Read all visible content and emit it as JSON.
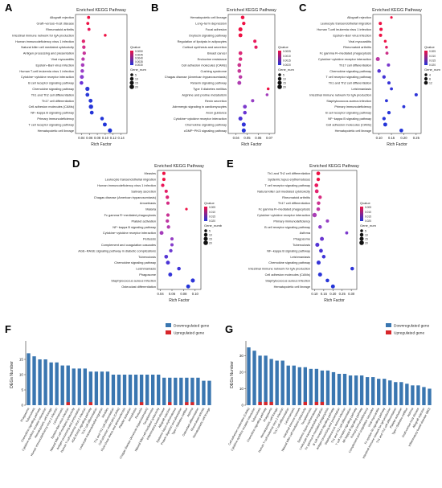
{
  "chart_data": [
    {
      "panel": "A",
      "type": "scatter",
      "title": "Enriched KEGG Pathway",
      "xlabel": "Rich Factor",
      "xticks": [
        "0.04",
        "0.06",
        "0.08",
        "0.10",
        "0.12",
        "0.14"
      ],
      "xlim": [
        0.025,
        0.155
      ],
      "legend": {
        "qvalue_title": "Qvalue",
        "qvalue_ticks": [
          "0.0050",
          "0.0045",
          "0.0040",
          "0.0035",
          "0.0030"
        ],
        "size_title": "Gene_number",
        "size_ticks": [
          "5",
          "10",
          "15",
          "20"
        ]
      },
      "categories": [
        "Allograft rejection",
        "Graft−versus−host disease",
        "Rheumatoid arthritis",
        "Intestinal immune network for IgA production",
        "Human immunodeficiency virus 1 infection",
        "Natural killer cell mediated cytotoxicity",
        "Antigen processing and presentation",
        "Viral myocarditis",
        "Epstein−Barr virus infection",
        "Human T-cell leukemia virus 1 infection",
        "Cytokine−cytokine receptor interaction",
        "B cell receptor signaling pathway",
        "Chemokine signaling pathway",
        "Th1 and Th2 cell differentiation",
        "Th17 cell differentiation",
        "Cell adhesion molecules (CAMs)",
        "NF−kappa B signaling pathway",
        "Primary immunodeficiency",
        "T cell receptor signaling pathway",
        "Hematopoietic cell lineage"
      ],
      "rich_factor": [
        0.058,
        0.056,
        0.059,
        0.1,
        0.045,
        0.046,
        0.047,
        0.044,
        0.043,
        0.042,
        0.041,
        0.04,
        0.055,
        0.055,
        0.063,
        0.064,
        0.066,
        0.092,
        0.099,
        0.112
      ],
      "gene_number": [
        4,
        4,
        4,
        3,
        6,
        6,
        6,
        6,
        7,
        7,
        9,
        7,
        11,
        8,
        9,
        12,
        8,
        7,
        9,
        11
      ],
      "color": [
        "#ee1144",
        "#ee1144",
        "#e8185a",
        "#ee1144",
        "#e0286e",
        "#d4308a",
        "#c8369a",
        "#bb3aab",
        "#a83cbd",
        "#9a3ec8",
        "#8a3ecf",
        "#6a30d8",
        "#3038d8",
        "#2a3ad8",
        "#2838d8",
        "#2636d8",
        "#2434d8",
        "#2234d8",
        "#2034d8",
        "#1e34d8"
      ]
    },
    {
      "panel": "B",
      "type": "scatter",
      "title": "Enriched KEGG Pathway",
      "xlabel": "Rich Factor",
      "xticks": [
        "0.04",
        "0.05",
        "0.06",
        "0.07"
      ],
      "xlim": [
        0.033,
        0.075
      ],
      "legend": {
        "qvalue_title": "Qvalue",
        "qvalue_ticks": [
          "0.0005",
          "0.0010",
          "0.0015",
          "0.0020"
        ],
        "size_title": "Gene_number",
        "size_ticks": [
          "5",
          "10",
          "15",
          "20"
        ]
      },
      "categories": [
        "Hematopoietic cell lineage",
        "Long−term depression",
        "Focal adhesion",
        "Oxytocin signaling pathway",
        "Regulation of lipolysis in adipocytes",
        "Cortisol synthesis and secretion",
        "Breast cancer",
        "Endocrine resistance",
        "Cell adhesion molecules (CAMs)",
        "Cushing syndrome",
        "Chagas disease (American trypanosomiasis)",
        "Relaxin signaling pathway",
        "Type II diabetes mellitus",
        "Arginine and proline metabolism",
        "Renin secretion",
        "Adrenergic signaling in cardiomyocytes",
        "Axon guidance",
        "Cytokine−cytokine receptor interaction",
        "Chemokine signaling pathway",
        "cGMP−PKG signaling pathway"
      ],
      "rich_factor": [
        0.046,
        0.047,
        0.044,
        0.044,
        0.057,
        0.058,
        0.044,
        0.044,
        0.043,
        0.043,
        0.044,
        0.043,
        0.069,
        0.068,
        0.055,
        0.048,
        0.048,
        0.044,
        0.047,
        0.047
      ],
      "gene_number": [
        7,
        6,
        10,
        9,
        5,
        5,
        8,
        7,
        8,
        8,
        7,
        9,
        3,
        3,
        5,
        8,
        7,
        10,
        10,
        10
      ],
      "color": [
        "#ee1144",
        "#ee1144",
        "#ee1144",
        "#ee1144",
        "#e8185a",
        "#e61c62",
        "#dc2a78",
        "#d8307e",
        "#cc3690",
        "#c63a98",
        "#bc3ca8",
        "#b03eb2",
        "#ee1144",
        "#a43ebc",
        "#963ec4",
        "#7c3acc",
        "#6a34d2",
        "#4c34d6",
        "#3234d8",
        "#2634d8"
      ]
    },
    {
      "panel": "C",
      "type": "scatter",
      "title": "Enriched KEGG Pathway",
      "xlabel": "Rich Factor",
      "xticks": [
        "0.10",
        "0.15",
        "0.20",
        "0.25"
      ],
      "xlim": [
        0.075,
        0.27
      ],
      "legend": {
        "qvalue_title": "Qvalue",
        "qvalue_ticks": [
          "0.005",
          "0.010",
          "0.015",
          "0.020"
        ],
        "size_title": "Gene_number",
        "size_ticks": [
          "4",
          "8",
          "12"
        ]
      },
      "categories": [
        "Allograft rejection",
        "Leukocyte transendothelial migration",
        "Human T-cell leukemia virus 1 infection",
        "Epstein−Barr virus infection",
        "Viral myocarditis",
        "Rheumatoid arthritis",
        "Fc gamma R−mediated phagocytosis",
        "Cytokine−cytokine receptor interaction",
        "Th17 cell differentiation",
        "Chemokine signaling pathway",
        "T cell receptor signaling pathway",
        "Th1 and Th2 cell differentiation",
        "Leishmaniasis",
        "Intestinal immune network for IgA production",
        "Staphylococcus aureus infection",
        "Primary immunodeficiency",
        "B cell receptor signaling pathway",
        "NF−kappa B signaling pathway",
        "Cell adhesion molecules (CAMs)",
        "Hematopoietic cell lineage"
      ],
      "rich_factor": [
        0.15,
        0.105,
        0.108,
        0.106,
        0.125,
        0.13,
        0.132,
        0.095,
        0.138,
        0.1,
        0.12,
        0.14,
        0.15,
        0.25,
        0.13,
        0.2,
        0.14,
        0.12,
        0.125,
        0.19
      ],
      "gene_number": [
        2,
        5,
        5,
        5,
        3,
        3,
        4,
        10,
        5,
        7,
        6,
        5,
        4,
        5,
        4,
        4,
        6,
        6,
        9,
        8
      ],
      "color": [
        "#ee1144",
        "#ee1144",
        "#ee1144",
        "#ee1144",
        "#ee1144",
        "#e01c64",
        "#cc3088",
        "#bc3aa4",
        "#7a38cc",
        "#5634d4",
        "#4234d6",
        "#3834d8",
        "#3234d8",
        "#2e34d8",
        "#2c34d8",
        "#2a34d8",
        "#2834d8",
        "#2634d8",
        "#2434d8",
        "#2234d8"
      ]
    },
    {
      "panel": "D",
      "type": "scatter",
      "title": "Enriched KEGG Pathway",
      "xlabel": "Rich Factor",
      "xticks": [
        "0.04",
        "0.06",
        "0.08",
        "0.10"
      ],
      "xlim": [
        0.035,
        0.11
      ],
      "legend": {
        "qvalue_title": "Qvalue",
        "qvalue_ticks": [
          "0.005",
          "0.010",
          "0.015",
          "0.020"
        ],
        "size_title": "Gene_number",
        "size_ticks": [
          "5",
          "10",
          "15",
          "20"
        ]
      },
      "categories": [
        "Measles",
        "Leukocyte transendothelial migration",
        "Human immunodeficiency virus 1 infection",
        "Salivary secretion",
        "Chagas disease (American trypanosomiasis)",
        "Amoebiasis",
        "Malaria",
        "Fc gamma R−mediated phagocytosis",
        "Platelet activation",
        "NF−kappa B signaling pathway",
        "Cytokine−cytokine receptor interaction",
        "Pertussis",
        "Complement and coagulation cascades",
        "AGE−RAGE signaling pathway in diabetic complications",
        "Tuberculosis",
        "Chemokine signaling pathway",
        "Leishmaniasis",
        "Phagosome",
        "Staphylococcus aureus infection",
        "Osteoclast differentiation"
      ],
      "rich_factor": [
        0.046,
        0.046,
        0.044,
        0.05,
        0.052,
        0.053,
        0.085,
        0.053,
        0.052,
        0.054,
        0.042,
        0.06,
        0.06,
        0.058,
        0.05,
        0.053,
        0.072,
        0.057,
        0.096,
        0.088
      ],
      "gene_number": [
        5,
        5,
        6,
        5,
        6,
        5,
        2,
        6,
        6,
        6,
        9,
        5,
        5,
        6,
        8,
        9,
        7,
        9,
        10,
        9
      ],
      "color": [
        "#ee1144",
        "#ee1144",
        "#ea185a",
        "#e41e66",
        "#dc2476",
        "#d42a84",
        "#ee1144",
        "#c83294",
        "#be36a2",
        "#b23aae",
        "#a43cba",
        "#963ec4",
        "#863ecc",
        "#6c3ad2",
        "#5636d4",
        "#4a34d6",
        "#3e34d8",
        "#3434d8",
        "#2c34d8",
        "#2434d8"
      ]
    },
    {
      "panel": "E",
      "type": "scatter",
      "title": "Enriched KEGG Pathway",
      "xlabel": "Rich Factor",
      "xticks": [
        "0.10",
        "0.15",
        "0.20",
        "0.25",
        "0.30"
      ],
      "xlim": [
        0.085,
        0.33
      ],
      "legend": {
        "qvalue_title": "Qvalue",
        "qvalue_ticks": [
          "0.005",
          "0.010",
          "0.015",
          "0.020"
        ],
        "size_title": "Gene_number",
        "size_ticks": [
          "5",
          "10",
          "15",
          "20"
        ]
      },
      "categories": [
        "Th1 and Th2 cell differentiation",
        "Systemic lupus erythematosus",
        "T cell receptor signaling pathway",
        "Natural killer cell mediated cytotoxicity",
        "Rheumatoid arthritis",
        "Th17 cell differentiation",
        "Fc gamma R−mediated phagocytosis",
        "Cytokine−cytokine receptor interaction",
        "Primary immunodeficiency",
        "B cell receptor signaling pathway",
        "Asthma",
        "Phagosome",
        "Tuberculosis",
        "NF−kappa B signaling pathway",
        "Leishmaniasis",
        "Chemokine signaling pathway",
        "Intestinal immune network for IgA production",
        "Cell adhesion molecules (CAMs)",
        "Staphylococcus aureus infection",
        "Hematopoietic cell lineage"
      ],
      "rich_factor": [
        0.12,
        0.12,
        0.11,
        0.112,
        0.13,
        0.122,
        0.12,
        0.1,
        0.17,
        0.13,
        0.275,
        0.14,
        0.115,
        0.135,
        0.15,
        0.122,
        0.305,
        0.13,
        0.17,
        0.2
      ],
      "gene_number": [
        8,
        6,
        8,
        8,
        6,
        7,
        7,
        12,
        5,
        7,
        4,
        9,
        10,
        8,
        7,
        10,
        7,
        10,
        7,
        9
      ],
      "color": [
        "#ee1144",
        "#ee1144",
        "#ea1a5e",
        "#e22470",
        "#d82c80",
        "#cc3292",
        "#be38a4",
        "#aa3cb6",
        "#963ec4",
        "#8a3ec8",
        "#7c3acc",
        "#6a36d0",
        "#5434d4",
        "#4834d6",
        "#3e34d8",
        "#3634d8",
        "#2e34d8",
        "#2a34d8",
        "#2634d8",
        "#2234d8"
      ]
    },
    {
      "panel": "F",
      "type": "bar",
      "ylabel": "DEGs Number",
      "ylim": [
        0,
        20
      ],
      "yticks": [
        "0",
        "5",
        "10",
        "15"
      ],
      "legend_labels": [
        "Downregulated gene",
        "Upregulated gene"
      ],
      "series_colors": [
        "#3a76b0",
        "#d7262a"
      ],
      "categories": [
        "Phagosome",
        "Tuberculosis",
        "Chemokine signaling pathway",
        "Cytokine-cytokine receptor interaction",
        "Hematopoietic cell lineage",
        "Human immunodeficiency virus 1 infection",
        "Leishmaniasis",
        "Epstein-Barr virus infection",
        "Natural killer cell mediated cytotoxicity",
        "Antigen processing and presentation",
        "Human T-cell leukemia virus 1 infection",
        "AGE-RAGE signaling pathway",
        "Th17 cell differentiation",
        "Leukocyte transendothelial migration",
        "Measles",
        "Th1 and Th2 cell differentiation",
        "Cell adhesion molecules (CAMs)",
        "Fluid shear stress and atherosclerosis",
        "Platelet activation",
        "Amoebiasis",
        "Pertussis",
        "Chagas disease (American trypanosomiasis)",
        "Toxoplasmosis",
        "Natural killer cell mediated cytotoxicity",
        "Inflammatory bowel disease",
        "Allograft rejection",
        "Systemic lupus erythematosus",
        "Protein digestion and absorption",
        "Type I diabetes mellitus",
        "Asthma",
        "Osteoclast differentiation",
        "Rheumatoid arthritis",
        "Hematopoietic cell lineage"
      ],
      "series": [
        {
          "name": "Downregulated gene",
          "values": [
            17,
            16,
            15,
            15,
            14,
            14,
            13,
            13,
            12,
            12,
            12,
            11,
            11,
            11,
            11,
            10,
            10,
            10,
            10,
            10,
            10,
            10,
            10,
            10,
            9,
            9,
            9,
            9,
            9,
            9,
            9,
            8,
            8
          ]
        },
        {
          "name": "Upregulated gene",
          "values": [
            0,
            0,
            0,
            0,
            0,
            0,
            0,
            1,
            0,
            0,
            0,
            1,
            0,
            0,
            0,
            0,
            0,
            0,
            0,
            0,
            1,
            0,
            0,
            0,
            0,
            1,
            0,
            0,
            1,
            1,
            0,
            0,
            0
          ]
        }
      ]
    },
    {
      "panel": "G",
      "type": "bar",
      "ylabel": "DEGs Number",
      "ylim": [
        0,
        37
      ],
      "yticks": [
        "0",
        "10",
        "20",
        "30"
      ],
      "legend_labels": [
        "Downregulated gene",
        "Upregulated gene"
      ],
      "series_colors": [
        "#3a76b0",
        "#d7262a"
      ],
      "categories": [
        "Cell adhesion molecules (CAMs)",
        "Cytokine-cytokine receptor interaction",
        "Tuberculosis",
        "Chemokine signaling pathway",
        "Phagosome",
        "Hematopoietic cell lineage",
        "Human T-cell leukemia virus 1 infection",
        "Th17 cell differentiation",
        "Leishmaniasis",
        "Intestinal immune network",
        "Natural killer cell mediated cytotoxicity",
        "Toxoplasmosis",
        "Systemic lupus erythematosus",
        "Leukocyte transendothelial migration",
        "Fc gamma R-mediated phagocytosis",
        "B cell receptor signaling pathway",
        "Antigen processing and presentation",
        "Staphylococcus aureus infection",
        "Th1 and Th2 cell differentiation",
        "T cell receptor signaling pathway",
        "NF-kappa B signaling pathway",
        "Primary immunodeficiency",
        "Complement and coagulation cascades",
        "Viral myocarditis",
        "Fc epsilon RI signaling pathway",
        "Intestinal immune network for IgA production",
        "Th1 and Th2 cell differentiation",
        "Platelet activation",
        "Type I diabetes mellitus",
        "Asthma",
        "Graft-versus-host disease",
        "Allograft rejection",
        "Inflammatory bowel disease (IBD)"
      ],
      "series": [
        {
          "name": "Downregulated gene",
          "values": [
            35,
            33,
            30,
            30,
            28,
            27,
            27,
            24,
            24,
            23,
            23,
            22,
            22,
            21,
            21,
            20,
            19,
            19,
            18,
            18,
            18,
            17,
            17,
            16,
            16,
            15,
            14,
            14,
            13,
            12,
            12,
            11,
            10
          ]
        },
        {
          "name": "Upregulated gene",
          "values": [
            0,
            0,
            2,
            2,
            2,
            0,
            0,
            0,
            0,
            0,
            2,
            0,
            2,
            2,
            0,
            0,
            0,
            0,
            0,
            0,
            0,
            0,
            0,
            0,
            0,
            0,
            0,
            0,
            0,
            0,
            0,
            0,
            0
          ]
        }
      ]
    }
  ]
}
